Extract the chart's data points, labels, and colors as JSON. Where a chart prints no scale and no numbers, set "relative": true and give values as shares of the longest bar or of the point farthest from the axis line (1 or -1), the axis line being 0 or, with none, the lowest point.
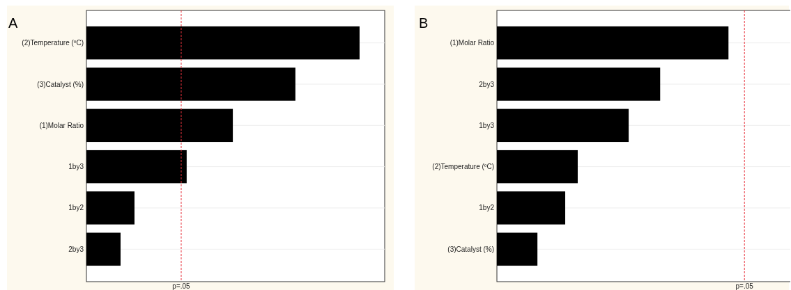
{
  "chart_data": [
    {
      "type": "bar",
      "orientation": "horizontal",
      "relative": true,
      "title": "A",
      "categories": [
        "(2)Temperature (ºC)",
        "(3)Catalyst (%)",
        "(1)Molar Ratio",
        "1by3",
        "1by2",
        "2by3"
      ],
      "values": [
        1,
        0.765,
        0.536,
        0.367,
        0.176,
        0.125
      ],
      "color": "#000000",
      "grid": "y",
      "ref_lines": [
        {
          "axis": "x",
          "value": 0.347,
          "label": "p=.05",
          "color": "#e8323c",
          "line_style": "dashed"
        }
      ]
    },
    {
      "type": "bar",
      "orientation": "horizontal",
      "relative": true,
      "title": "B",
      "categories": [
        "(1)Molar Ratio",
        "2by3",
        "1by3",
        "(2)Temperature (ºC)",
        "1by2",
        "(3)Catalyst (%)"
      ],
      "values": [
        1,
        0.705,
        0.569,
        0.349,
        0.295,
        0.175
      ],
      "color": "#000000",
      "grid": "y",
      "ref_lines": [
        {
          "axis": "x",
          "value": 1.069,
          "label": "p=.05",
          "color": "#e8323c",
          "line_style": "dashed"
        }
      ]
    }
  ]
}
